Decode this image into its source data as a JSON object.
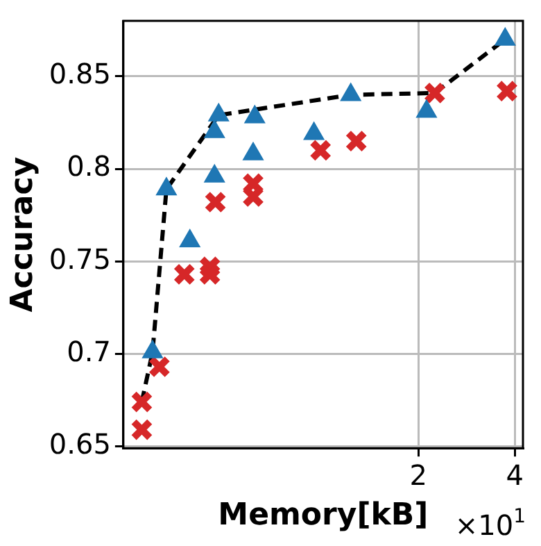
{
  "chart_data": {
    "type": "scatter",
    "xlabel": "Memory[kB]",
    "ylabel": "Accuracy",
    "log": "x",
    "grid": true,
    "legend": false,
    "xlim": [
      0.24,
      4.24
    ],
    "xticks": [
      2,
      4
    ],
    "ylim": [
      0.649,
      0.88
    ],
    "yticks": [
      0.65,
      0.7,
      0.75,
      0.8,
      0.85
    ],
    "annotations": [
      "×10$^{1}$"
    ],
    "series": [
      {
        "marker": "triangle",
        "color": "#1f77b4",
        "x": [
          0.327,
          0.476,
          0.462,
          0.617,
          0.61,
          0.462,
          0.944,
          1.23,
          0.387,
          0.296,
          2.12,
          3.73
        ],
        "values": [
          0.789,
          0.829,
          0.82,
          0.828,
          0.808,
          0.796,
          0.819,
          0.84,
          0.761,
          0.701,
          0.831,
          0.87
        ]
      },
      {
        "marker": "cross",
        "color": "#d62728",
        "x": [
          0.465,
          0.61,
          0.61,
          0.99,
          1.28,
          0.372,
          0.447,
          0.447,
          0.311,
          0.274,
          0.274,
          2.25,
          3.78
        ],
        "values": [
          0.782,
          0.792,
          0.785,
          0.81,
          0.815,
          0.743,
          0.747,
          0.743,
          0.693,
          0.674,
          0.659,
          0.841,
          0.842
        ]
      },
      {
        "type": "line",
        "marker": "none",
        "line_style": "dashed",
        "color": "#000000",
        "x": [
          0.274,
          0.296,
          0.327,
          0.476,
          1.23,
          2.25,
          3.73
        ],
        "values": [
          0.674,
          0.701,
          0.789,
          0.829,
          0.84,
          0.841,
          0.87
        ]
      }
    ]
  }
}
